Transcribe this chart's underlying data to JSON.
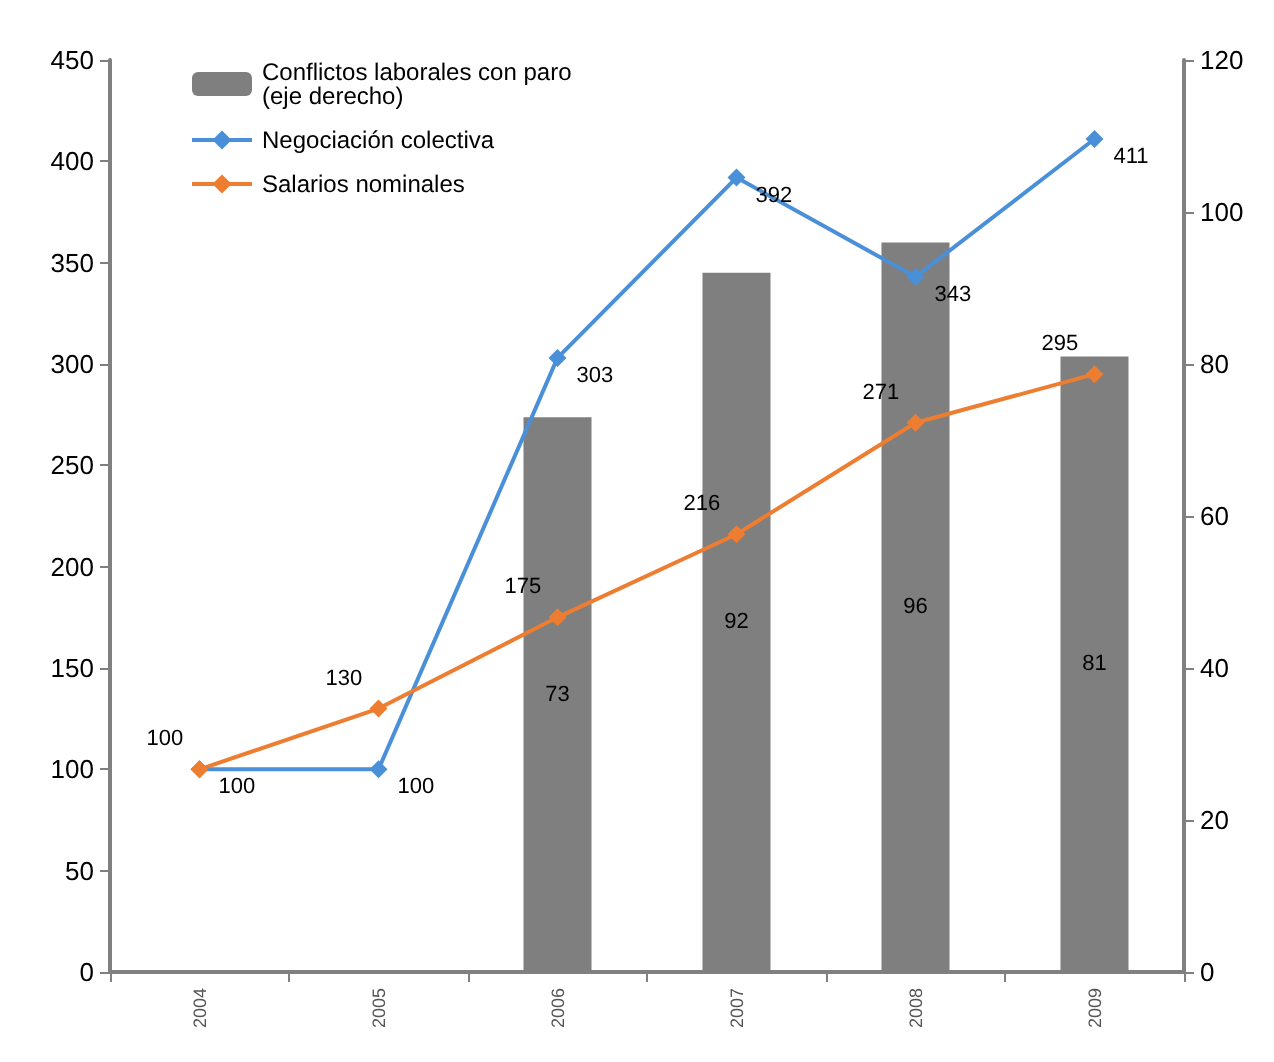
{
  "chart_data": {
    "type": "bar",
    "categories": [
      "2004",
      "2005",
      "2006",
      "2007",
      "2008",
      "2009"
    ],
    "series": [
      {
        "name": "Conflictos laborales con paro\n(eje derecho)",
        "axis": "y2",
        "color": "#7f7f7f",
        "values": [
          null,
          null,
          73,
          92,
          96,
          81
        ]
      },
      {
        "name": "Negociación colectiva",
        "type": "line",
        "color": "#4a90d9",
        "values": [
          100,
          100,
          303,
          392,
          343,
          411
        ]
      },
      {
        "name": "Salarios nominales",
        "type": "line",
        "color": "#ed7d31",
        "values": [
          100,
          130,
          175,
          216,
          271,
          295
        ]
      }
    ],
    "ylim": [
      0,
      450
    ],
    "yticks": [
      0,
      50,
      100,
      150,
      200,
      250,
      300,
      350,
      400,
      450
    ],
    "y2lim": [
      0,
      120
    ],
    "y2ticks": [
      0,
      20,
      40,
      60,
      80,
      100,
      120
    ],
    "data_labels": true,
    "legend": "top left",
    "grid": false,
    "marker": "diamond",
    "line_style": "solid"
  }
}
